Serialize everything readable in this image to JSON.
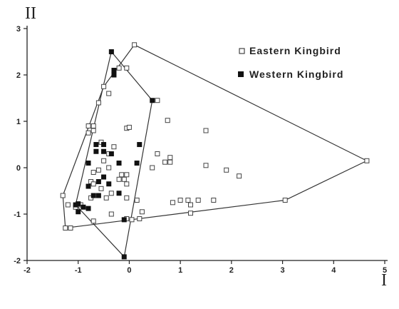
{
  "chart_data": {
    "type": "scatter",
    "title": "",
    "xlabel": "I",
    "ylabel": "II",
    "xlim": [
      -2,
      5
    ],
    "ylim": [
      -2,
      3
    ],
    "x_ticks": [
      "-2",
      "-1",
      "0",
      "1",
      "2",
      "3",
      "4",
      "5"
    ],
    "y_ticks": [
      "-2",
      "-1",
      "0",
      "1",
      "2",
      "3"
    ],
    "grid": false,
    "legend_position": "top-right",
    "series": [
      {
        "name": "Eastern Kingbird",
        "marker": "open-square",
        "points": [
          [
            0.1,
            2.65
          ],
          [
            -0.2,
            2.15
          ],
          [
            -0.05,
            2.15
          ],
          [
            -0.5,
            1.75
          ],
          [
            -0.4,
            1.6
          ],
          [
            -0.6,
            1.4
          ],
          [
            0.55,
            1.45
          ],
          [
            -0.8,
            0.9
          ],
          [
            -0.7,
            0.9
          ],
          [
            -0.7,
            0.8
          ],
          [
            -0.8,
            0.75
          ],
          [
            -0.05,
            0.85
          ],
          [
            0.0,
            0.87
          ],
          [
            0.75,
            1.02
          ],
          [
            1.5,
            0.8
          ],
          [
            -0.55,
            0.55
          ],
          [
            -0.3,
            0.45
          ],
          [
            -0.4,
            0.3
          ],
          [
            0.55,
            0.3
          ],
          [
            0.8,
            0.22
          ],
          [
            -0.5,
            0.15
          ],
          [
            0.8,
            0.12
          ],
          [
            0.7,
            0.12
          ],
          [
            1.5,
            0.05
          ],
          [
            -0.4,
            0.0
          ],
          [
            0.45,
            0.0
          ],
          [
            1.9,
            -0.05
          ],
          [
            -0.6,
            -0.05
          ],
          [
            -0.7,
            -0.1
          ],
          [
            -0.15,
            -0.15
          ],
          [
            -0.05,
            -0.15
          ],
          [
            -0.1,
            -0.25
          ],
          [
            -0.2,
            -0.25
          ],
          [
            2.15,
            -0.18
          ],
          [
            -0.75,
            -0.3
          ],
          [
            -0.7,
            -0.35
          ],
          [
            -0.55,
            -0.45
          ],
          [
            -0.35,
            -0.55
          ],
          [
            -0.05,
            -0.35
          ],
          [
            -0.45,
            -0.65
          ],
          [
            -0.75,
            -0.65
          ],
          [
            0.15,
            -0.7
          ],
          [
            0.85,
            -0.75
          ],
          [
            1.0,
            -0.7
          ],
          [
            1.15,
            -0.7
          ],
          [
            1.2,
            -0.8
          ],
          [
            1.35,
            -0.7
          ],
          [
            1.65,
            -0.7
          ],
          [
            3.05,
            -0.7
          ],
          [
            4.65,
            0.15
          ],
          [
            -1.3,
            -0.6
          ],
          [
            -1.2,
            -0.8
          ],
          [
            -1.25,
            -1.3
          ],
          [
            -1.15,
            -1.3
          ],
          [
            -1.05,
            -0.85
          ],
          [
            -0.95,
            -0.8
          ],
          [
            -0.7,
            -1.15
          ],
          [
            -0.35,
            -1.0
          ],
          [
            -0.05,
            -1.1
          ],
          [
            0.05,
            -1.12
          ],
          [
            0.2,
            -1.1
          ],
          [
            0.25,
            -0.95
          ],
          [
            1.2,
            -0.98
          ],
          [
            -0.05,
            -0.65
          ]
        ]
      },
      {
        "name": "Western Kingbird",
        "marker": "filled-square",
        "points": [
          [
            -0.35,
            2.5
          ],
          [
            -0.3,
            2.1
          ],
          [
            -0.3,
            2.0
          ],
          [
            0.45,
            1.45
          ],
          [
            -0.65,
            0.5
          ],
          [
            -0.5,
            0.5
          ],
          [
            -0.5,
            0.35
          ],
          [
            -0.65,
            0.35
          ],
          [
            -0.35,
            0.3
          ],
          [
            -0.2,
            0.1
          ],
          [
            -0.8,
            0.1
          ],
          [
            0.15,
            0.1
          ],
          [
            0.2,
            0.5
          ],
          [
            -0.5,
            -0.2
          ],
          [
            -0.6,
            -0.3
          ],
          [
            -0.8,
            -0.4
          ],
          [
            -0.4,
            -0.35
          ],
          [
            -0.7,
            -0.6
          ],
          [
            -0.6,
            -0.6
          ],
          [
            -0.2,
            -0.55
          ],
          [
            -1.0,
            -0.78
          ],
          [
            -1.05,
            -0.8
          ],
          [
            -0.9,
            -0.85
          ],
          [
            -1.0,
            -0.95
          ],
          [
            -0.8,
            -0.88
          ],
          [
            -0.1,
            -1.12
          ],
          [
            -0.1,
            -1.92
          ]
        ]
      }
    ],
    "hulls": [
      {
        "name": "Eastern Kingbird",
        "vertices": [
          [
            0.1,
            2.65
          ],
          [
            4.65,
            0.15
          ],
          [
            3.05,
            -0.7
          ],
          [
            -1.25,
            -1.3
          ],
          [
            -1.3,
            -0.6
          ],
          [
            -0.5,
            1.75
          ]
        ]
      },
      {
        "name": "Western Kingbird",
        "vertices": [
          [
            -0.35,
            2.5
          ],
          [
            0.45,
            1.45
          ],
          [
            -0.1,
            -1.92
          ],
          [
            -1.05,
            -0.8
          ]
        ]
      }
    ]
  }
}
